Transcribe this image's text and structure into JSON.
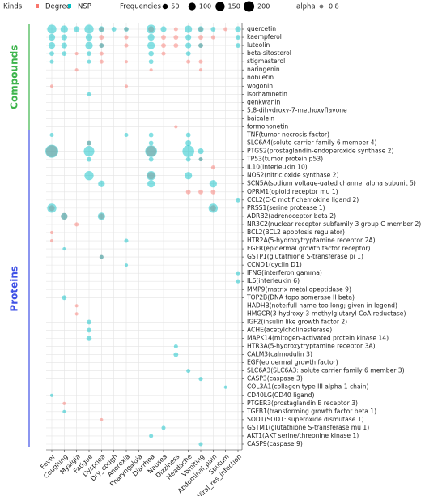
{
  "chart_data": {
    "type": "bubble",
    "legend_kinds_title": "Kinds",
    "legend_size_title": "Frequencies",
    "legend_alpha_title": "alpha",
    "alpha": 0.8,
    "size_ticks": [
      50,
      100,
      150,
      200
    ],
    "x_categories": [
      "Fever",
      "Coughing",
      "Myalgia",
      "Fatigue",
      "Dyspnea",
      "Dry_cough",
      "Anorexia",
      "Pharyngalgia",
      "Diarrhea",
      "Nausea",
      "Dizziness",
      "Headache",
      "Vomiting",
      "Abdominal_pain",
      "Sputum",
      "Viral_res_infection"
    ],
    "y_groups": [
      {
        "label": "Compounds",
        "color": "#3cb44b",
        "categories": [
          "quercetin",
          "kaempferol",
          "luteolin",
          "beta-sitosterol",
          "stigmasterol",
          "naringenin",
          "nobiletin",
          "wogonin",
          "isorhamnetin",
          "genkwanin",
          "5,8-dihydroxy-7-methoxyflavone",
          "baicalein",
          "formononetin"
        ]
      },
      {
        "label": "Proteins",
        "color": "#3f51e6",
        "categories": [
          "TNF(tumor necrosis factor)",
          "SLC6A4(solute carrier family 6 member 4)",
          "PTGS2(prostaglandin-endoperoxide synthase 2)",
          "TP53(tumor protein p53)",
          "IL10(interleukin 10)",
          "NOS2(nitric oxide synthase 2)",
          "SCN5A(sodium voltage-gated channel alpha subunit 5)",
          "OPRM1(opioid receptor mu 1)",
          "CCL2(C-C motif chemokine ligand 2)",
          "PRSS1(serine protease 1)",
          "ADRB2(adrenoceptor beta 2)",
          "NR3C2(nuclear receptor subfamily 3 group C member 2)",
          "BCL2(BCL2 apoptosis regulator)",
          "HTR2A(5-hydroxytryptamine receptor 2A)",
          "EGFR(epidermal growth factor receptor)",
          "GSTP1(glutathione S-transferase pi 1)",
          "CCND1(cyclin D1)",
          "IFNG(interferon gamma)",
          "IL6(interleukin 6)",
          "MMP9(matrix metallopeptidase 9)",
          "TOP2B(DNA topoisomerase II beta)",
          "HADHB(note:full name too long; given in legend)",
          "HMGCR(3-hydroxy-3-methylglutaryl-CoA reductase)",
          "IGF2(insulin like growth factor 2)",
          "ACHE(acetylcholinesterase)",
          "MAPK14(mitogen-activated protein kinase 14)",
          "HTR3A(5-hydroxytryptamine receptor 3A)",
          "CALM3(calmodulin 3)",
          "EGF(epidermal growth factor)",
          "SLC6A3(SLC6A3: solute carrier family 6 member 3)",
          "CASP3(caspase 3)",
          "COL3A1(collagen type III alpha 1 chain)",
          "CD40LG(CD40 ligand)",
          "PTGER3(prostaglandin E receptor 3)",
          "TGFB1(transforming growth factor beta 1)",
          "SOD1(SOD1: superoxide dismutase 1)",
          "GSTM1(glutathione S-transferase mu 1)",
          "AKT1(AKT serine/threonine kinase 1)",
          "CASP9(caspase 9)"
        ]
      }
    ],
    "series": [
      {
        "name": "Degree",
        "color": "#f8766d",
        "x": [
          "Dyspnea",
          "Anorexia",
          "Diarrhea",
          "Dizziness",
          "Vomiting",
          "Sputum",
          "Dyspnea",
          "Anorexia",
          "Nausea",
          "Dizziness",
          "Vomiting",
          "Abdominal_pain",
          "Dyspnea",
          "Anorexia",
          "Nausea",
          "Dizziness",
          "Vomiting",
          "Myalgia",
          "Dyspnea",
          "Nausea",
          "Dyspnea",
          "Anorexia",
          "Headache",
          "Vomiting",
          "Myalgia",
          "Diarrhea",
          "Vomiting",
          "Fever",
          "Anorexia",
          "Dizziness",
          "Fever",
          "Diarrhea",
          "Diarrhea",
          "Fatigue",
          "Headache",
          "Vomiting",
          "Abdominal_pain",
          "Fever",
          "Abdominal_pain",
          "Coughing",
          "Dyspnea",
          "Vomiting",
          "Myalgia",
          "Fever",
          "Fever",
          "Myalgia",
          "Myalgia",
          "Coughing",
          "Dyspnea",
          "Abdominal_pain",
          "Dyspnea"
        ],
        "y": [
          "quercetin",
          "quercetin",
          "quercetin",
          "quercetin",
          "quercetin",
          "quercetin",
          "kaempferol",
          "kaempferol",
          "kaempferol",
          "kaempferol",
          "kaempferol",
          "kaempferol",
          "luteolin",
          "luteolin",
          "luteolin",
          "luteolin",
          "luteolin",
          "beta-sitosterol",
          "beta-sitosterol",
          "beta-sitosterol",
          "stigmasterol",
          "stigmasterol",
          "stigmasterol",
          "stigmasterol",
          "naringenin",
          "naringenin",
          "naringenin",
          "wogonin",
          "wogonin",
          "formononetin",
          "PTGS2(prostaglandin-endoperoxide synthase 2)",
          "PTGS2(prostaglandin-endoperoxide synthase 2)",
          "NOS2(nitric oxide synthase 2)",
          "SLC6A4(solute carrier family 6 member 4)",
          "OPRM1(opioid receptor mu 1)",
          "OPRM1(opioid receptor mu 1)",
          "OPRM1(opioid receptor mu 1)",
          "PRSS1(serine protease 1)",
          "PRSS1(serine protease 1)",
          "ADRB2(adrenoceptor beta 2)",
          "ADRB2(adrenoceptor beta 2)",
          "TP53(tumor protein p53)",
          "NR3C2(nuclear receptor subfamily 3 group C member 2)",
          "BCL2(BCL2 apoptosis regulator)",
          "HTR2A(5-hydroxytryptamine receptor 2A)",
          "HMGCR(3-hydroxy-3-methylglutaryl-CoA reductase)",
          "HADHB(note:full name too long; given in legend)",
          "PTGER3(prostaglandin E receptor 3)",
          "SOD1(SOD1: superoxide dismutase 1)",
          "IL10(interleukin 10)",
          "GSTP1(glutathione S-transferase pi 1)"
        ],
        "values": [
          40,
          30,
          60,
          30,
          40,
          30,
          40,
          30,
          40,
          40,
          40,
          30,
          40,
          30,
          40,
          40,
          40,
          20,
          30,
          30,
          30,
          20,
          30,
          30,
          20,
          20,
          20,
          20,
          20,
          20,
          250,
          200,
          100,
          40,
          40,
          40,
          40,
          60,
          60,
          80,
          60,
          30,
          30,
          20,
          20,
          20,
          20,
          20,
          20,
          30,
          30
        ]
      },
      {
        "name": "NSP",
        "color": "#00bfc4",
        "x": [
          "Fever",
          "Coughing",
          "Myalgia",
          "Fatigue",
          "Dyspnea",
          "Dry_cough",
          "Anorexia",
          "Diarrhea",
          "Nausea",
          "Headache",
          "Vomiting",
          "Abdominal_pain",
          "Viral_res_infection",
          "Fever",
          "Coughing",
          "Fatigue",
          "Diarrhea",
          "Headache",
          "Viral_res_infection",
          "Fever",
          "Coughing",
          "Fatigue",
          "Dyspnea",
          "Diarrhea",
          "Headache",
          "Vomiting",
          "Viral_res_infection",
          "Fever",
          "Coughing",
          "Fatigue",
          "Diarrhea",
          "Headache",
          "Fever",
          "Fatigue",
          "Diarrhea",
          "Fatigue",
          "Fever",
          "Anorexia",
          "Diarrhea",
          "Headache",
          "Fatigue",
          "Diarrhea",
          "Headache",
          "Fever",
          "Fatigue",
          "Diarrhea",
          "Headache",
          "Vomiting",
          "Fatigue",
          "Diarrhea",
          "Headache",
          "Vomiting",
          "Fatigue",
          "Diarrhea",
          "Headache",
          "Dyspnea",
          "Diarrhea",
          "Abdominal_pain",
          "Viral_res_infection",
          "Fever",
          "Abdominal_pain",
          "Coughing",
          "Dyspnea",
          "Anorexia",
          "Coughing",
          "Dyspnea",
          "Anorexia",
          "Viral_res_infection",
          "Viral_res_infection",
          "Coughing",
          "Fatigue",
          "Fatigue",
          "Fatigue",
          "Dizziness",
          "Dizziness",
          "Headache",
          "Vomiting",
          "Sputum",
          "Fever",
          "Coughing",
          "Nausea",
          "Diarrhea",
          "Vomiting"
        ],
        "y": [
          "quercetin",
          "quercetin",
          "quercetin",
          "quercetin",
          "quercetin",
          "quercetin",
          "quercetin",
          "quercetin",
          "quercetin",
          "quercetin",
          "quercetin",
          "quercetin",
          "quercetin",
          "kaempferol",
          "kaempferol",
          "kaempferol",
          "kaempferol",
          "kaempferol",
          "kaempferol",
          "luteolin",
          "luteolin",
          "luteolin",
          "luteolin",
          "luteolin",
          "luteolin",
          "luteolin",
          "luteolin",
          "beta-sitosterol",
          "beta-sitosterol",
          "beta-sitosterol",
          "beta-sitosterol",
          "beta-sitosterol",
          "stigmasterol",
          "stigmasterol",
          "stigmasterol",
          "isorhamnetin",
          "TNF(tumor necrosis factor)",
          "TNF(tumor necrosis factor)",
          "TNF(tumor necrosis factor)",
          "TNF(tumor necrosis factor)",
          "SLC6A4(solute carrier family 6 member 4)",
          "SLC6A4(solute carrier family 6 member 4)",
          "SLC6A4(solute carrier family 6 member 4)",
          "PTGS2(prostaglandin-endoperoxide synthase 2)",
          "PTGS2(prostaglandin-endoperoxide synthase 2)",
          "PTGS2(prostaglandin-endoperoxide synthase 2)",
          "PTGS2(prostaglandin-endoperoxide synthase 2)",
          "PTGS2(prostaglandin-endoperoxide synthase 2)",
          "TP53(tumor protein p53)",
          "TP53(tumor protein p53)",
          "TP53(tumor protein p53)",
          "TP53(tumor protein p53)",
          "NOS2(nitric oxide synthase 2)",
          "NOS2(nitric oxide synthase 2)",
          "NOS2(nitric oxide synthase 2)",
          "SCN5A(sodium voltage-gated channel alpha subunit 5)",
          "SCN5A(sodium voltage-gated channel alpha subunit 5)",
          "SCN5A(sodium voltage-gated channel alpha subunit 5)",
          "CCL2(C-C motif chemokine ligand 2)",
          "PRSS1(serine protease 1)",
          "PRSS1(serine protease 1)",
          "ADRB2(adrenoceptor beta 2)",
          "ADRB2(adrenoceptor beta 2)",
          "HTR2A(5-hydroxytryptamine receptor 2A)",
          "EGFR(epidermal growth factor receptor)",
          "GSTP1(glutathione S-transferase pi 1)",
          "CCND1(cyclin D1)",
          "IFNG(interferon gamma)",
          "IL6(interleukin 6)",
          "TOP2B(DNA topoisomerase II beta)",
          "IGF2(insulin like growth factor 2)",
          "ACHE(acetylcholinesterase)",
          "MAPK14(mitogen-activated protein kinase 14)",
          "HTR3A(5-hydroxytryptamine receptor 3A)",
          "CALM3(calmodulin 3)",
          "SLC6A3(SLC6A3: solute carrier family 6 member 3)",
          "CASP3(caspase 3)",
          "COL3A1(collagen type III alpha 1 chain)",
          "CD40LG(CD40 ligand)",
          "TGFB1(transforming growth factor beta 1)",
          "GSTM1(glutathione S-transferase mu 1)",
          "AKT1(AKT serine/threonine kinase 1)",
          "CASP9(caspase 9)"
        ],
        "values": [
          150,
          100,
          60,
          150,
          60,
          40,
          40,
          150,
          60,
          100,
          60,
          40,
          60,
          80,
          60,
          80,
          80,
          60,
          40,
          80,
          60,
          100,
          40,
          100,
          60,
          40,
          40,
          40,
          40,
          40,
          50,
          40,
          30,
          30,
          40,
          30,
          30,
          30,
          40,
          40,
          40,
          40,
          60,
          300,
          200,
          250,
          250,
          60,
          40,
          40,
          40,
          30,
          150,
          150,
          100,
          80,
          100,
          100,
          40,
          150,
          150,
          80,
          100,
          30,
          20,
          30,
          20,
          30,
          30,
          40,
          40,
          40,
          50,
          30,
          40,
          30,
          30,
          20,
          20,
          20,
          30,
          30,
          30
        ]
      }
    ]
  }
}
